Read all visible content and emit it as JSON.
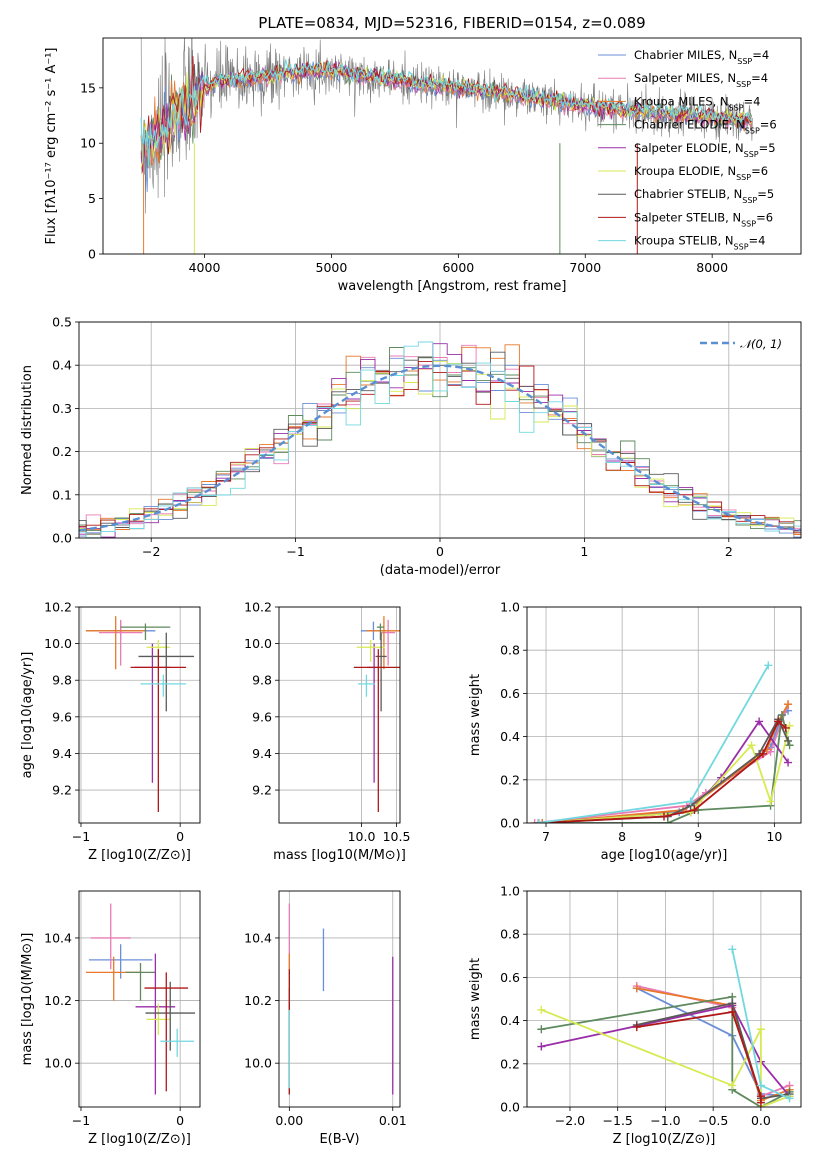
{
  "colors": [
    "#6c8ed8",
    "#e97bb6",
    "#e8782a",
    "#5e8a5e",
    "#9a2ea8",
    "#d7ea52",
    "#5a5a5a",
    "#b01818",
    "#72d8e0"
  ],
  "chart_data": [
    {
      "id": "spectrum",
      "type": "line",
      "title": "PLATE=0834, MJD=52316, FIBERID=0154, z=0.089",
      "xlabel": "wavelength [Angstrom, rest frame]",
      "ylabel": "Flux [fλ10⁻¹⁷ erg cm⁻² s⁻¹ A⁻¹]",
      "xlim": [
        3200,
        8700
      ],
      "ylim": [
        0,
        19.5
      ],
      "xticks": [
        4000,
        5000,
        6000,
        7000,
        8000
      ],
      "yticks": [
        0,
        5,
        10,
        15
      ],
      "grid": false,
      "legend_position": "top-right",
      "legend": [
        {
          "name": "Chabrier MILES, N",
          "sub": "SSP",
          "suffix": "=4"
        },
        {
          "name": "Salpeter MILES, N",
          "sub": "SSP",
          "suffix": "=4"
        },
        {
          "name": "Kroupa MILES, N",
          "sub": "SSP",
          "suffix": "=4"
        },
        {
          "name": "Chabrier ELODIE, N",
          "sub": "SSP",
          "suffix": "=6"
        },
        {
          "name": "Salpeter ELODIE, N",
          "sub": "SSP",
          "suffix": "=5"
        },
        {
          "name": "Kroupa ELODIE, N",
          "sub": "SSP",
          "suffix": "=6"
        },
        {
          "name": "Chabrier STELIB, N",
          "sub": "SSP",
          "suffix": "=5"
        },
        {
          "name": "Salpeter STELIB, N",
          "sub": "SSP",
          "suffix": "=6"
        },
        {
          "name": "Kroupa STELIB, N",
          "sub": "SSP",
          "suffix": "=4"
        }
      ],
      "continuum": {
        "x": [
          3500,
          3600,
          3700,
          3800,
          3900,
          4000,
          4100,
          4300,
          4500,
          4700,
          4900,
          5100,
          5300,
          5500,
          5700,
          5900,
          6100,
          6300,
          6500,
          6700,
          6900,
          7100,
          7300,
          7500,
          7700,
          7900,
          8100,
          8300
        ],
        "y": [
          9.5,
          10.3,
          11.5,
          12.8,
          13.8,
          15.0,
          15.5,
          15.8,
          16.1,
          16.4,
          16.6,
          16.4,
          16.0,
          15.7,
          15.3,
          15.1,
          14.9,
          14.6,
          14.2,
          13.9,
          13.6,
          13.3,
          13.0,
          12.8,
          12.6,
          12.4,
          12.2,
          12.0
        ]
      }
    },
    {
      "id": "residuals",
      "type": "line",
      "xlabel": "(data-model)/error",
      "ylabel": "Normed distribution",
      "xlim": [
        -2.5,
        2.5
      ],
      "ylim": [
        0,
        0.5
      ],
      "xticks": [
        -2,
        -1,
        0,
        1,
        2
      ],
      "yticks": [
        0.0,
        0.1,
        0.2,
        0.3,
        0.4,
        0.5
      ],
      "grid": true,
      "legend_position": "top-right",
      "reference_curve": {
        "name": "𝒩(0, 1)",
        "mean": 0,
        "sigma": 1
      }
    },
    {
      "id": "age-vs-Z",
      "type": "scatter",
      "xlabel": "Z [log10(Z/Z⊙)]",
      "ylabel": "age  [log10(age/yr)]",
      "xlim": [
        -1.02,
        0.2
      ],
      "ylim": [
        9.02,
        10.2
      ],
      "xticks": [
        -1,
        0
      ],
      "yticks": [
        9.2,
        9.4,
        9.6,
        9.8,
        10.0,
        10.2
      ],
      "grid": true,
      "points": [
        {
          "x": -0.6,
          "xerr": 0.35,
          "y": 10.07,
          "yerr_lo": 0.05,
          "yerr_hi": 0.05,
          "c": 0
        },
        {
          "x": -0.6,
          "xerr": 0.22,
          "y": 10.06,
          "yerr_lo": 0.18,
          "yerr_hi": 0.07,
          "c": 1
        },
        {
          "x": -0.65,
          "xerr": 0.3,
          "y": 10.07,
          "yerr_lo": 0.21,
          "yerr_hi": 0.08,
          "c": 2
        },
        {
          "x": -0.35,
          "xerr": 0.25,
          "y": 10.09,
          "yerr_lo": 0.07,
          "yerr_hi": 0.02,
          "c": 3
        },
        {
          "x": -0.28,
          "xerr": 0.18,
          "y": 9.87,
          "yerr_lo": 0.63,
          "yerr_hi": 0.13,
          "c": 4
        },
        {
          "x": -0.22,
          "xerr": 0.12,
          "y": 9.98,
          "yerr_lo": 0.08,
          "yerr_hi": 0.04,
          "c": 5
        },
        {
          "x": -0.14,
          "xerr": 0.28,
          "y": 9.93,
          "yerr_lo": 0.3,
          "yerr_hi": 0.13,
          "c": 6
        },
        {
          "x": -0.22,
          "xerr": 0.28,
          "y": 9.87,
          "yerr_lo": 0.79,
          "yerr_hi": 0.1,
          "c": 7
        },
        {
          "x": -0.17,
          "xerr": 0.23,
          "y": 9.78,
          "yerr_lo": 0.07,
          "yerr_hi": 0.05,
          "c": 8
        }
      ]
    },
    {
      "id": "age-vs-mass",
      "type": "scatter",
      "xlabel": "mass [log10(M/M⊙)]",
      "ylabel": "",
      "xlim": [
        8.82,
        10.55
      ],
      "ylim": [
        9.02,
        10.2
      ],
      "xticks": [
        10.0,
        10.5
      ],
      "yticks": [
        9.2,
        9.4,
        9.6,
        9.8,
        10.0,
        10.2
      ],
      "grid": true,
      "points": [
        {
          "x": 10.17,
          "xerr": 0.18,
          "y": 10.07,
          "yerr_lo": 0.05,
          "yerr_hi": 0.05,
          "c": 0
        },
        {
          "x": 10.38,
          "xerr": 0.1,
          "y": 10.06,
          "yerr_lo": 0.18,
          "yerr_hi": 0.07,
          "c": 1
        },
        {
          "x": 10.32,
          "xerr": 0.25,
          "y": 10.07,
          "yerr_lo": 0.21,
          "yerr_hi": 0.08,
          "c": 2
        },
        {
          "x": 10.27,
          "xerr": 0.05,
          "y": 10.09,
          "yerr_lo": 0.07,
          "yerr_hi": 0.02,
          "c": 3
        },
        {
          "x": 10.18,
          "xerr": 0.1,
          "y": 9.87,
          "yerr_lo": 0.63,
          "yerr_hi": 0.13,
          "c": 4
        },
        {
          "x": 10.13,
          "xerr": 0.2,
          "y": 9.98,
          "yerr_lo": 0.08,
          "yerr_hi": 0.04,
          "c": 5
        },
        {
          "x": 10.28,
          "xerr": 0.08,
          "y": 9.93,
          "yerr_lo": 0.3,
          "yerr_hi": 0.13,
          "c": 6
        },
        {
          "x": 10.24,
          "xerr": 0.35,
          "y": 9.87,
          "yerr_lo": 0.79,
          "yerr_hi": 0.1,
          "c": 7
        },
        {
          "x": 10.07,
          "xerr": 0.12,
          "y": 9.78,
          "yerr_lo": 0.07,
          "yerr_hi": 0.05,
          "c": 8
        }
      ]
    },
    {
      "id": "mass-weight-vs-age",
      "type": "line",
      "xlabel": "age  [log10(age/yr)]",
      "ylabel": "mass weight",
      "xlim": [
        6.75,
        10.35
      ],
      "ylim": [
        0,
        1.0
      ],
      "xticks": [
        7,
        8,
        9,
        10
      ],
      "yticks": [
        0.0,
        0.2,
        0.4,
        0.6,
        0.8,
        1.0
      ],
      "grid": true,
      "series": [
        {
          "c": 0,
          "x": [
            6.95,
            8.75,
            8.95,
            9.95,
            10.1,
            10.18
          ],
          "y": [
            0.0,
            0.05,
            0.09,
            0.35,
            0.5,
            0.52
          ]
        },
        {
          "c": 1,
          "x": [
            6.85,
            8.85,
            9.1,
            9.95,
            10.18
          ],
          "y": [
            0.0,
            0.08,
            0.14,
            0.33,
            0.55
          ]
        },
        {
          "c": 2,
          "x": [
            6.95,
            8.8,
            9.0,
            9.9,
            10.05,
            10.18
          ],
          "y": [
            0.0,
            0.06,
            0.1,
            0.34,
            0.47,
            0.55
          ]
        },
        {
          "c": 3,
          "x": [
            6.9,
            8.6,
            9.0,
            9.95,
            10.1,
            10.2
          ],
          "y": [
            0.0,
            0.0,
            0.06,
            0.08,
            0.5,
            0.36
          ]
        },
        {
          "c": 4,
          "x": [
            6.9,
            8.9,
            9.3,
            9.8,
            10.18
          ],
          "y": [
            0.0,
            0.05,
            0.21,
            0.47,
            0.28
          ]
        },
        {
          "c": 5,
          "x": [
            6.9,
            8.9,
            9.7,
            9.95,
            10.2
          ],
          "y": [
            0.0,
            0.05,
            0.36,
            0.1,
            0.45
          ]
        },
        {
          "c": 6,
          "x": [
            6.9,
            8.6,
            8.9,
            9.8,
            10.05,
            10.18
          ],
          "y": [
            0.0,
            0.03,
            0.08,
            0.32,
            0.48,
            0.38
          ]
        },
        {
          "c": 7,
          "x": [
            6.9,
            8.55,
            8.95,
            9.85,
            10.05,
            10.15
          ],
          "y": [
            0.0,
            0.03,
            0.06,
            0.32,
            0.47,
            0.44
          ]
        },
        {
          "c": 8,
          "x": [
            6.9,
            8.9,
            9.92
          ],
          "y": [
            0.0,
            0.1,
            0.73
          ]
        }
      ]
    },
    {
      "id": "mass-vs-Z",
      "type": "scatter",
      "xlabel": "Z [log10(Z/Z⊙)]",
      "ylabel": "mass [log10(M/M⊙)]",
      "xlim": [
        -1.02,
        0.2
      ],
      "ylim": [
        9.86,
        10.55
      ],
      "xticks": [
        -1,
        0
      ],
      "yticks": [
        10.0,
        10.2,
        10.4
      ],
      "grid": true,
      "points": [
        {
          "x": -0.6,
          "xerr": 0.32,
          "y": 10.33,
          "yerr_lo": 0.06,
          "yerr_hi": 0.05,
          "c": 0
        },
        {
          "x": -0.7,
          "xerr": 0.2,
          "y": 10.4,
          "yerr_lo": 0.1,
          "yerr_hi": 0.11,
          "c": 1
        },
        {
          "x": -0.67,
          "xerr": 0.28,
          "y": 10.29,
          "yerr_lo": 0.09,
          "yerr_hi": 0.05,
          "c": 2
        },
        {
          "x": -0.4,
          "xerr": 0.15,
          "y": 10.29,
          "yerr_lo": 0.09,
          "yerr_hi": 0.03,
          "c": 3
        },
        {
          "x": -0.25,
          "xerr": 0.2,
          "y": 10.18,
          "yerr_lo": 0.28,
          "yerr_hi": 0.17,
          "c": 4
        },
        {
          "x": -0.22,
          "xerr": 0.12,
          "y": 10.14,
          "yerr_lo": 0.05,
          "yerr_hi": 0.05,
          "c": 5
        },
        {
          "x": -0.1,
          "xerr": 0.25,
          "y": 10.16,
          "yerr_lo": 0.12,
          "yerr_hi": 0.1,
          "c": 6
        },
        {
          "x": -0.14,
          "xerr": 0.22,
          "y": 10.24,
          "yerr_lo": 0.33,
          "yerr_hi": 0.05,
          "c": 7
        },
        {
          "x": -0.03,
          "xerr": 0.17,
          "y": 10.07,
          "yerr_lo": 0.05,
          "yerr_hi": 0.04,
          "c": 8
        }
      ]
    },
    {
      "id": "mass-vs-EBV",
      "type": "scatter",
      "xlabel": "E(B-V)",
      "ylabel": "",
      "xlim": [
        -0.001,
        0.0107
      ],
      "ylim": [
        9.86,
        10.55
      ],
      "xticks": [
        0.0,
        0.01
      ],
      "xtick_labels": [
        "0.00",
        "0.01"
      ],
      "yticks": [
        10.0,
        10.2,
        10.4
      ],
      "grid": true,
      "points": [
        {
          "x": 0.0033,
          "xerr": 0,
          "y": 10.33,
          "yerr_lo": 0.1,
          "yerr_hi": 0.1,
          "c": 0
        },
        {
          "x": 0.0,
          "xerr": 0,
          "y": 10.4,
          "yerr_lo": 0.1,
          "yerr_hi": 0.11,
          "c": 1
        },
        {
          "x": 0.0,
          "xerr": 0,
          "y": 10.25,
          "yerr_lo": 0.14,
          "yerr_hi": 0.1,
          "c": 2
        },
        {
          "x": 0.0,
          "xerr": 0,
          "y": 10.1,
          "yerr_lo": 0.2,
          "yerr_hi": 0.14,
          "c": 3
        },
        {
          "x": 0.01,
          "xerr": 0,
          "y": 10.14,
          "yerr_lo": 0.24,
          "yerr_hi": 0.2,
          "c": 4
        },
        {
          "x": 0.0,
          "xerr": 0,
          "y": 10.15,
          "yerr_lo": 0.17,
          "yerr_hi": 0.12,
          "c": 5
        },
        {
          "x": 0.0,
          "xerr": 0,
          "y": 10.12,
          "yerr_lo": 0.18,
          "yerr_hi": 0.12,
          "c": 6
        },
        {
          "x": 0.0,
          "xerr": 0,
          "y": 10.1,
          "yerr_lo": 0.2,
          "yerr_hi": 0.2,
          "c": 7
        },
        {
          "x": 0.0,
          "xerr": 0,
          "y": 10.07,
          "yerr_lo": 0.15,
          "yerr_hi": 0.1,
          "c": 8
        }
      ]
    },
    {
      "id": "mass-weight-vs-Z",
      "type": "line",
      "xlabel": "Z [log10(Z/Z⊙)]",
      "ylabel": "mass weight",
      "xlim": [
        -2.45,
        0.42
      ],
      "ylim": [
        0,
        1.0
      ],
      "xticks": [
        -2.0,
        -1.5,
        -1.0,
        -0.5,
        0.0
      ],
      "yticks": [
        0.0,
        0.2,
        0.4,
        0.6,
        0.8,
        1.0
      ],
      "grid": true,
      "series": [
        {
          "c": 0,
          "x": [
            -1.3,
            -0.3,
            0.0,
            0.3
          ],
          "y": [
            0.55,
            0.33,
            0.06,
            0.05
          ]
        },
        {
          "c": 1,
          "x": [
            -1.3,
            -0.3,
            0.0,
            0.3
          ],
          "y": [
            0.56,
            0.46,
            0.05,
            0.1
          ]
        },
        {
          "c": 2,
          "x": [
            -1.3,
            -0.3,
            0.0,
            0.3
          ],
          "y": [
            0.55,
            0.47,
            0.03,
            0.08
          ]
        },
        {
          "c": 3,
          "x": [
            -2.3,
            -0.3,
            -0.3,
            0.0,
            0.3
          ],
          "y": [
            0.36,
            0.51,
            0.08,
            0.0,
            0.07
          ]
        },
        {
          "c": 4,
          "x": [
            -2.3,
            -0.3,
            0.0,
            0.3
          ],
          "y": [
            0.28,
            0.47,
            0.21,
            0.05
          ]
        },
        {
          "c": 5,
          "x": [
            -2.3,
            -0.3,
            0.0,
            0.0,
            0.3
          ],
          "y": [
            0.45,
            0.1,
            0.36,
            0.0,
            0.05
          ]
        },
        {
          "c": 6,
          "x": [
            -1.3,
            -0.3,
            0.0,
            0.3
          ],
          "y": [
            0.38,
            0.48,
            0.04,
            0.06
          ]
        },
        {
          "c": 7,
          "x": [
            -1.3,
            -0.3,
            0.0,
            0.0
          ],
          "y": [
            0.37,
            0.44,
            0.05,
            0.02
          ]
        },
        {
          "c": 8,
          "x": [
            -0.3,
            0.0,
            0.3
          ],
          "y": [
            0.73,
            0.1,
            0.04
          ]
        }
      ]
    }
  ]
}
